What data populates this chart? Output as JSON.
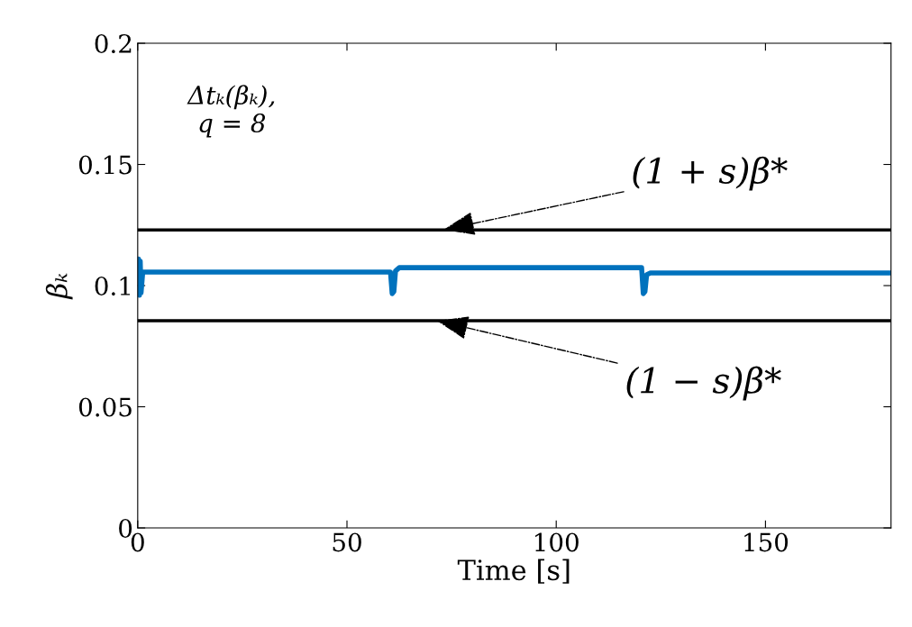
{
  "chart_data": {
    "type": "line",
    "xlabel": "Time [s]",
    "ylabel": "βₖ",
    "xlim": [
      0,
      180
    ],
    "xticks": [
      0,
      50,
      100,
      150
    ],
    "ylim": [
      0,
      0.2
    ],
    "yticks": [
      0,
      0.05,
      0.1,
      0.15,
      0.2
    ],
    "grid": false,
    "series": [
      {
        "color": "#0072bd",
        "x": [
          0,
          0.2,
          0.4,
          0.6,
          0.8,
          1.2,
          60,
          60.4,
          60.8,
          61.2,
          61.6,
          62.5,
          120,
          120.4,
          120.8,
          121.2,
          121.6,
          122.5,
          180
        ],
        "values": [
          0.106,
          0.111,
          0.096,
          0.11,
          0.097,
          0.1056,
          0.1056,
          0.1056,
          0.0967,
          0.0975,
          0.106,
          0.1074,
          0.1074,
          0.1074,
          0.0967,
          0.0975,
          0.1045,
          0.1052,
          0.1052
        ]
      }
    ],
    "ref_lines": [
      {
        "axis": "y",
        "value": 0.123,
        "color": "#000000"
      },
      {
        "axis": "y",
        "value": 0.0855,
        "color": "#000000"
      }
    ],
    "annotations": [
      "Δtₖ(βₖ),\nq = 8",
      {
        "text": "(1 + s)β*",
        "x": 73,
        "y": 0.123
      },
      {
        "text": "(1 − s)β*",
        "x": 71.5,
        "y": 0.0855
      }
    ]
  }
}
